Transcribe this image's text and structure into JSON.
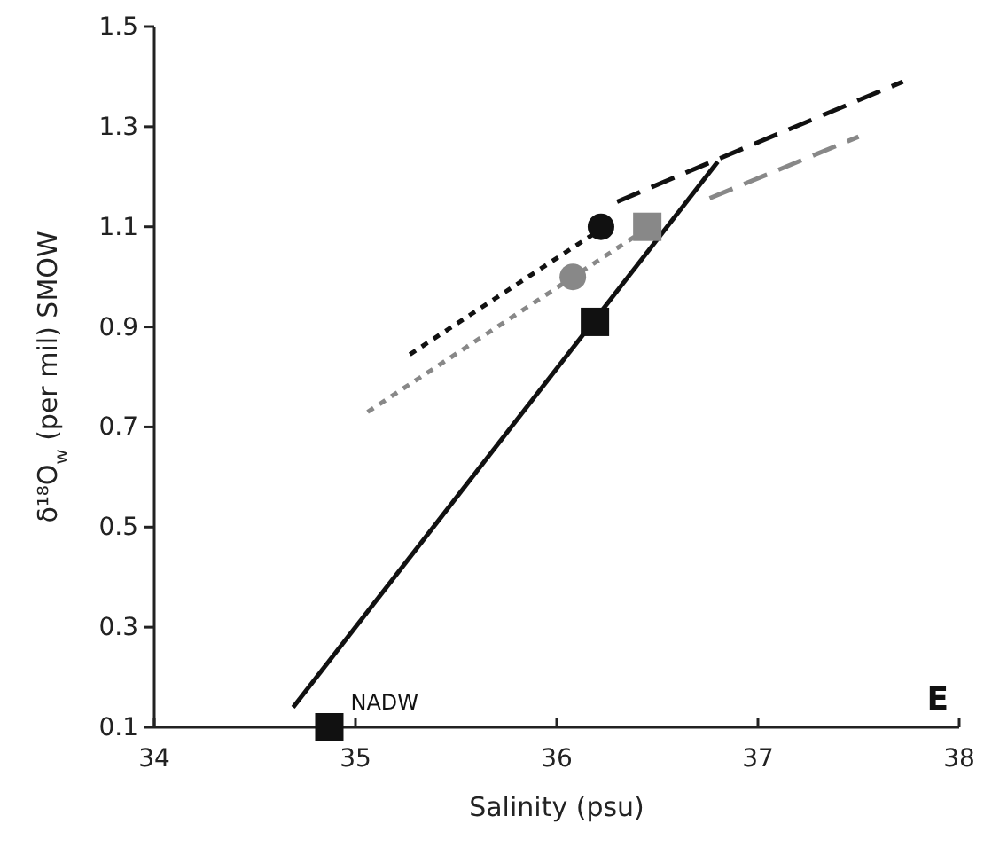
{
  "chart_data": {
    "type": "line",
    "xlabel": "Salinity (psu)",
    "ylabel": "δ¹⁸O$_{w}$ (per mil) SMOW",
    "xlim": [
      34,
      38
    ],
    "xticks": [
      34,
      35,
      36,
      37,
      38
    ],
    "ylim": [
      0.1,
      1.5
    ],
    "yticks": [
      0.1,
      0.3,
      0.5,
      0.7,
      0.9,
      1.1,
      1.3,
      1.5
    ],
    "grid": false,
    "series": [
      {
        "color": "#111111",
        "line_style": "solid",
        "x": [
          34.69,
          36.8
        ],
        "values": [
          0.14,
          1.23
        ]
      },
      {
        "color": "#111111",
        "line_style": "dotted",
        "x": [
          35.27,
          36.2
        ],
        "values": [
          0.845,
          1.09
        ]
      },
      {
        "color": "#111111",
        "line_style": "dashed",
        "x": [
          36.3,
          36.8,
          37.72
        ],
        "values": [
          1.15,
          1.235,
          1.39
        ]
      },
      {
        "color": "#888888",
        "line_style": "dotted",
        "x": [
          35.06,
          36.5
        ],
        "values": [
          0.73,
          1.11
        ]
      },
      {
        "color": "#888888",
        "line_style": "dashed",
        "x": [
          36.76,
          37.5
        ],
        "values": [
          1.157,
          1.28
        ]
      },
      {
        "type": "scatter",
        "color": "#111111",
        "marker": "square",
        "x": [
          34.87,
          36.19
        ],
        "values": [
          0.1,
          0.91
        ]
      },
      {
        "type": "scatter",
        "color": "#111111",
        "marker": "circle",
        "x": [
          36.22
        ],
        "values": [
          1.1
        ]
      },
      {
        "type": "scatter",
        "color": "#888888",
        "marker": "circle",
        "x": [
          36.08
        ],
        "values": [
          1.0
        ]
      },
      {
        "type": "scatter",
        "color": "#888888",
        "marker": "square",
        "x": [
          36.45
        ],
        "values": [
          1.1
        ]
      }
    ],
    "annotations": [
      {
        "text": "NADW",
        "x": 34.87,
        "y": 0.1
      },
      "E"
    ]
  }
}
